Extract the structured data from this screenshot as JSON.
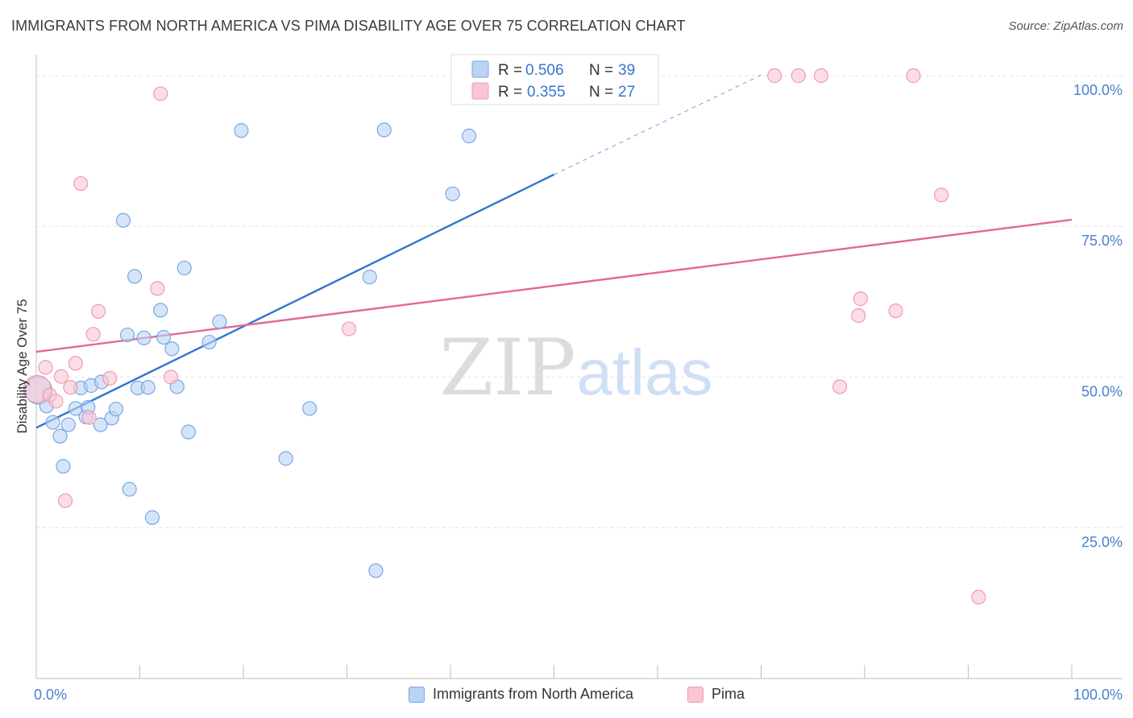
{
  "title": "IMMIGRANTS FROM NORTH AMERICA VS PIMA DISABILITY AGE OVER 75 CORRELATION CHART",
  "source": "Source: ZipAtlas.com",
  "watermark": {
    "zip": "ZIP",
    "atlas": "atlas"
  },
  "colors": {
    "blue_fill": "#b9d3f5",
    "blue_stroke": "#7aa7e3",
    "blue_line": "#2f75d0",
    "pink_fill": "#f8c6d4",
    "pink_stroke": "#f09ab3",
    "pink_line": "#e4688f",
    "tick_text": "#4a7fd0",
    "grid": "#e3e3e3"
  },
  "legend": {
    "r_label": "R =",
    "n_label": "N =",
    "blue": {
      "r": "0.506",
      "n": "39"
    },
    "pink": {
      "r": "0.355",
      "n": "27"
    }
  },
  "bottom_legend": {
    "blue": "Immigrants from North America",
    "pink": "Pima"
  },
  "chart_data": {
    "type": "scatter",
    "xlabel": "",
    "ylabel": "Disability Age Over 75",
    "xlim": [
      0,
      100
    ],
    "ylim": [
      0,
      102
    ],
    "x_tick_labels": [
      "0.0%",
      "100.0%"
    ],
    "y_ticks": [
      {
        "value": 25,
        "label": "25.0%"
      },
      {
        "value": 50,
        "label": "50.0%"
      },
      {
        "value": 75,
        "label": "75.0%"
      },
      {
        "value": 100,
        "label": "100.0%"
      }
    ],
    "series": [
      {
        "name": "Immigrants from North America",
        "color": "blue",
        "points": [
          [
            0.2,
            47.8
          ],
          [
            1.0,
            45.2
          ],
          [
            1.6,
            42.5
          ],
          [
            2.3,
            40.2
          ],
          [
            3.1,
            42.1
          ],
          [
            2.6,
            35.2
          ],
          [
            3.8,
            44.8
          ],
          [
            4.3,
            48.2
          ],
          [
            5.3,
            48.6
          ],
          [
            4.8,
            43.4
          ],
          [
            6.2,
            42.1
          ],
          [
            7.3,
            43.2
          ],
          [
            7.7,
            44.7
          ],
          [
            8.4,
            76.0
          ],
          [
            8.8,
            57.0
          ],
          [
            9.5,
            66.7
          ],
          [
            9.8,
            48.2
          ],
          [
            10.4,
            56.5
          ],
          [
            10.8,
            48.3
          ],
          [
            11.2,
            26.7
          ],
          [
            12.0,
            61.1
          ],
          [
            12.3,
            56.6
          ],
          [
            13.1,
            54.7
          ],
          [
            13.6,
            48.4
          ],
          [
            14.3,
            68.1
          ],
          [
            14.7,
            40.9
          ],
          [
            16.7,
            55.8
          ],
          [
            17.7,
            59.2
          ],
          [
            19.8,
            90.9
          ],
          [
            24.1,
            36.5
          ],
          [
            26.4,
            44.8
          ],
          [
            32.2,
            66.6
          ],
          [
            32.8,
            17.9
          ],
          [
            33.6,
            91.0
          ],
          [
            40.2,
            80.4
          ],
          [
            41.8,
            90.0
          ],
          [
            6.3,
            49.2
          ],
          [
            5.0,
            45.0
          ],
          [
            9.0,
            31.4
          ]
        ]
      },
      {
        "name": "Pima",
        "color": "pink",
        "points": [
          [
            0.1,
            48.0
          ],
          [
            0.9,
            51.6
          ],
          [
            1.3,
            47.0
          ],
          [
            1.9,
            46.0
          ],
          [
            2.4,
            50.1
          ],
          [
            2.8,
            29.5
          ],
          [
            3.3,
            48.3
          ],
          [
            3.8,
            52.3
          ],
          [
            4.3,
            82.1
          ],
          [
            5.1,
            43.3
          ],
          [
            5.5,
            57.1
          ],
          [
            6.0,
            60.9
          ],
          [
            7.1,
            49.8
          ],
          [
            12.0,
            97.0
          ],
          [
            11.7,
            64.7
          ],
          [
            13.0,
            50.0
          ],
          [
            30.2,
            58.0
          ],
          [
            71.3,
            100.0
          ],
          [
            73.6,
            100.0
          ],
          [
            75.8,
            100.0
          ],
          [
            77.6,
            48.4
          ],
          [
            79.4,
            60.2
          ],
          [
            79.6,
            63.0
          ],
          [
            83.0,
            61.0
          ],
          [
            84.7,
            100.0
          ],
          [
            87.4,
            80.2
          ],
          [
            91.0,
            13.5
          ]
        ]
      }
    ],
    "trend_lines": [
      {
        "series": "Immigrants from North America",
        "x": [
          0,
          50
        ],
        "y": [
          41.6,
          83.6
        ],
        "dashed_to": [
          70,
          100.1
        ]
      },
      {
        "series": "Pima",
        "x": [
          0,
          100
        ],
        "y": [
          54.2,
          76.1
        ]
      }
    ]
  }
}
